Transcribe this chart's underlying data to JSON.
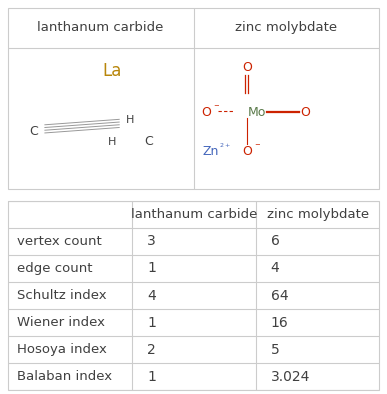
{
  "top_headers": [
    "lanthanum carbide",
    "zinc molybdate"
  ],
  "row_labels": [
    "vertex count",
    "edge count",
    "Schultz index",
    "Wiener index",
    "Hosoya index",
    "Balaban index"
  ],
  "col1_values": [
    "3",
    "1",
    "4",
    "1",
    "2",
    "1"
  ],
  "col2_values": [
    "6",
    "4",
    "64",
    "16",
    "5",
    "3.024"
  ],
  "border_color": "#cccccc",
  "text_color": "#404040",
  "la_color": "#b8860b",
  "o_color": "#cc2200",
  "mo_color": "#5a7a4a",
  "zn_color": "#4466bb",
  "bond_color": "#999999",
  "fig_bg": "#ffffff",
  "header_fontsize": 9.5,
  "cell_fontsize": 10,
  "mol_fontsize": 9
}
